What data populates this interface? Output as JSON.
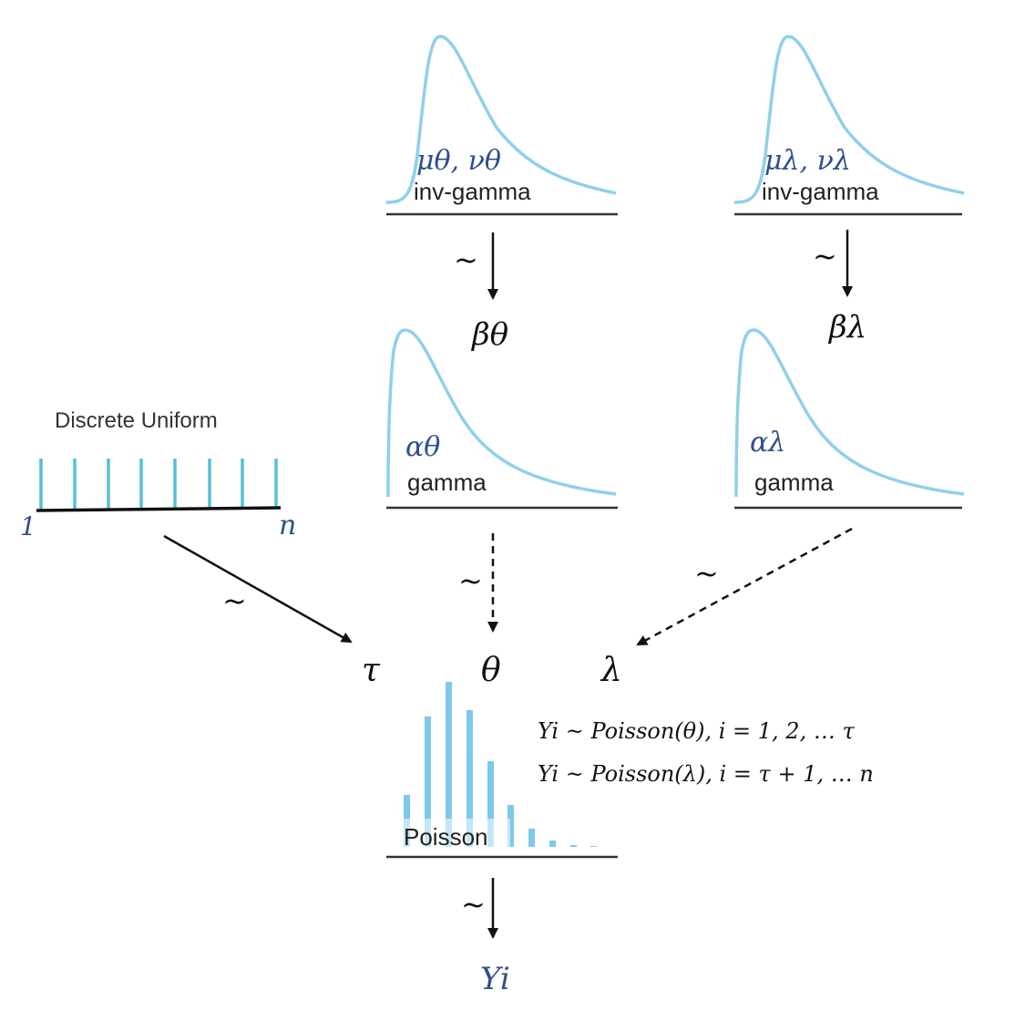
{
  "nodes": {
    "inv_gamma_theta": {
      "params": "μθ, νθ",
      "label": "inv-gamma"
    },
    "inv_gamma_lambda": {
      "params": "μλ, νλ",
      "label": "inv-gamma"
    },
    "beta_theta": "βθ",
    "beta_lambda": "βλ",
    "gamma_theta": {
      "params": "αθ",
      "label": "gamma"
    },
    "gamma_lambda": {
      "params": "αλ",
      "label": "gamma"
    },
    "discrete_uniform": {
      "title": "Discrete Uniform",
      "lower": "1",
      "upper": "n"
    },
    "tau": "τ",
    "theta": "θ",
    "lambda": "λ",
    "poisson": {
      "label": "Poisson"
    },
    "y_i": "Yi"
  },
  "relation_symbol": "~",
  "equations": [
    "Yi ~ Poisson(θ), i = 1, 2, … τ",
    "Yi ~ Poisson(λ), i = τ + 1, … n"
  ],
  "colors": {
    "curve": "#8fd0ea",
    "uniform_ticks": "#59bfd4",
    "poisson_bars": "#7ec8ea",
    "blue_text": "#2f4f8c"
  }
}
